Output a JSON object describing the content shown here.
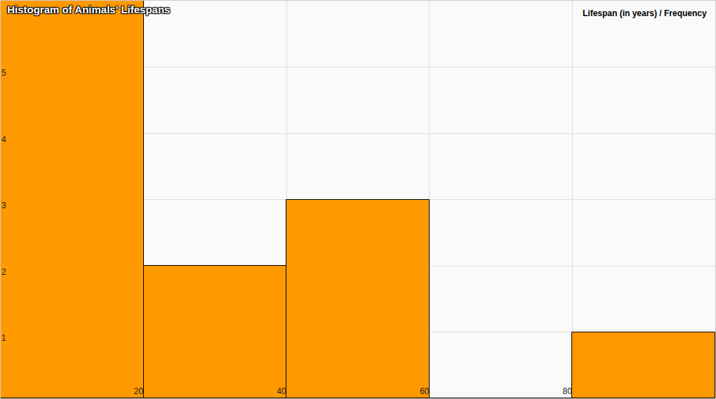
{
  "chart_data": {
    "type": "histogram",
    "title": "Histogram of Animals' Lifespans",
    "annotations": [
      "Lifespan (in years) / Frequency"
    ],
    "bins": [
      0,
      20,
      40,
      60,
      80,
      100
    ],
    "values": [
      6,
      2,
      3,
      0,
      1
    ],
    "color": "#ff9900",
    "xlim": [
      0,
      100
    ],
    "xticks": [
      20,
      40,
      60,
      80
    ],
    "ylim": [
      0,
      6
    ],
    "yticks": [
      1,
      2,
      3,
      4,
      5
    ],
    "grid": true
  }
}
